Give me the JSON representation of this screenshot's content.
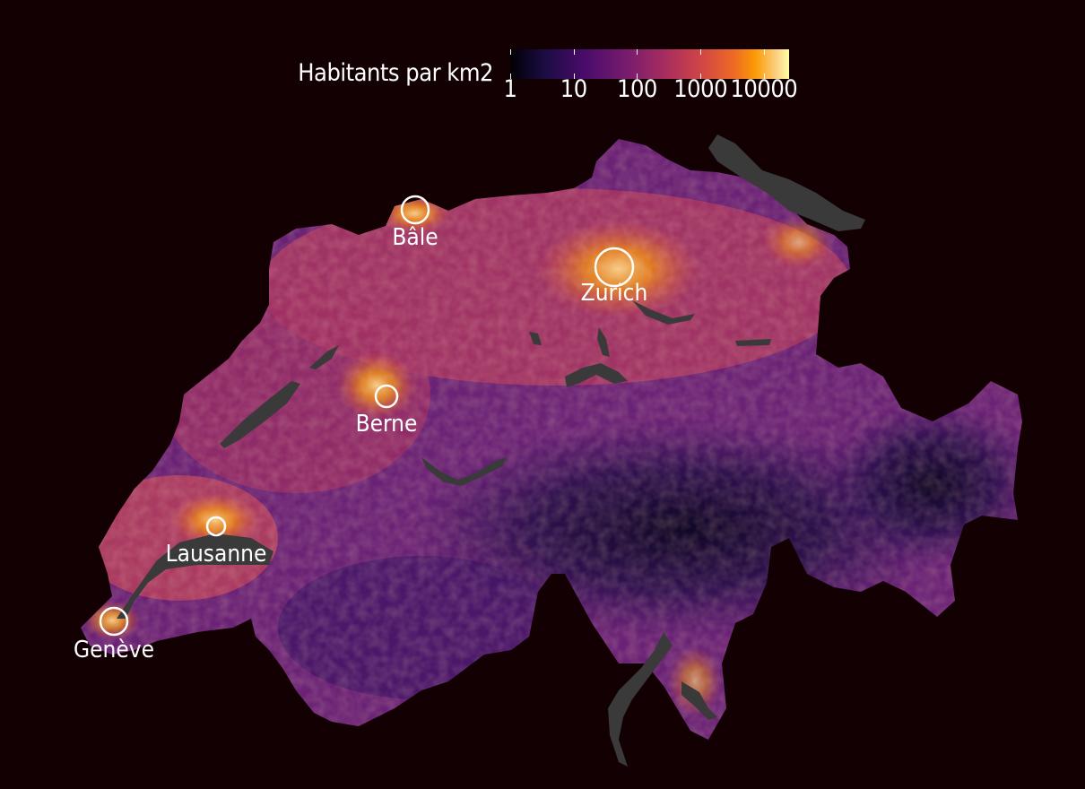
{
  "legend": {
    "title": "Habitants par km2",
    "ticks": [
      {
        "label": "1",
        "value": 1
      },
      {
        "label": "10",
        "value": 10
      },
      {
        "label": "100",
        "value": 100
      },
      {
        "label": "1000",
        "value": 1000
      },
      {
        "label": "10000",
        "value": 10000
      }
    ],
    "scale": "log",
    "palette": "magma"
  },
  "cities": [
    {
      "name": "Bâle"
    },
    {
      "name": "Zurich"
    },
    {
      "name": "Berne"
    },
    {
      "name": "Lausanne"
    },
    {
      "name": "Genève"
    }
  ],
  "colors": {
    "background": "#120003",
    "lakes": "#3a3a3a",
    "city_marker": "#ffffff"
  }
}
